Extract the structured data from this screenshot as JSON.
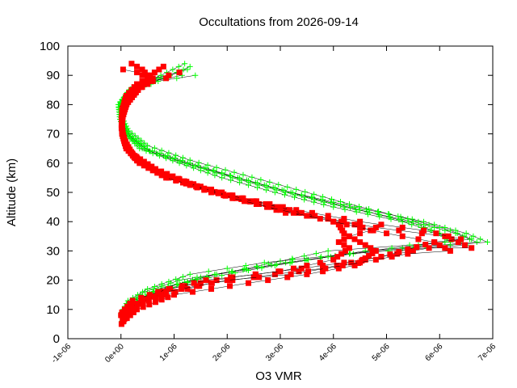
{
  "chart_data": {
    "type": "scatter",
    "title": "Occultations from 2026-09-14",
    "xlabel": "O3 VMR",
    "ylabel": "Altitude (km)",
    "xlim": [
      -1e-06,
      7e-06
    ],
    "ylim": [
      0,
      100
    ],
    "x_ticks": [
      -1e-06,
      0,
      1e-06,
      2e-06,
      3e-06,
      4e-06,
      5e-06,
      6e-06,
      7e-06
    ],
    "x_tick_labels": [
      "-1e-06",
      "0e+00",
      "1e-06",
      "2e-06",
      "3e-06",
      "4e-06",
      "5e-06",
      "6e-06",
      "7e-06"
    ],
    "y_ticks": [
      0,
      10,
      20,
      30,
      40,
      50,
      60,
      70,
      80,
      90,
      100
    ],
    "y_tick_labels": [
      "0",
      "10",
      "20",
      "30",
      "40",
      "50",
      "60",
      "70",
      "80",
      "90",
      "100"
    ],
    "grid": false,
    "legend": "none",
    "colors": {
      "green": "#00ff00",
      "red": "#ff0000",
      "line": "#000000"
    },
    "series": [
      {
        "marker": "plus",
        "color": "#00ff00",
        "profiles": [
          [
            [
              2e-08,
              6
            ],
            [
              1.4e-07,
              10
            ],
            [
              5.5e-07,
              15
            ],
            [
              1.4e-06,
              20
            ],
            [
              2.9e-06,
              25
            ],
            [
              4.6e-06,
              30
            ],
            [
              6.7e-06,
              33
            ],
            [
              6.3e-06,
              36
            ],
            [
              5.5e-06,
              40
            ],
            [
              4.2e-06,
              45
            ],
            [
              3.1e-06,
              50
            ],
            [
              2.1e-06,
              55
            ],
            [
              1.2e-06,
              60
            ],
            [
              4e-07,
              65
            ],
            [
              1e-07,
              70
            ],
            [
              -1e-08,
              75
            ],
            [
              -3e-08,
              80
            ],
            [
              1.8e-07,
              85
            ],
            [
              7e-07,
              89
            ],
            [
              1.25e-06,
              92
            ]
          ],
          [
            [
              4e-08,
              7
            ],
            [
              1.7e-07,
              11
            ],
            [
              6e-07,
              16
            ],
            [
              1.5e-06,
              21
            ],
            [
              3.1e-06,
              26
            ],
            [
              4.8e-06,
              30
            ],
            [
              6.9e-06,
              33
            ],
            [
              6.5e-06,
              36
            ],
            [
              5.7e-06,
              40
            ],
            [
              4.4e-06,
              45
            ],
            [
              3.2e-06,
              50
            ],
            [
              2.2e-06,
              55
            ],
            [
              1.3e-06,
              60
            ],
            [
              4.5e-07,
              65
            ],
            [
              1.2e-07,
              70
            ],
            [
              0,
              75
            ],
            [
              -2e-08,
              80
            ],
            [
              2e-07,
              85
            ],
            [
              8e-07,
              89
            ],
            [
              1.3e-06,
              93
            ]
          ],
          [
            [
              0,
              8
            ],
            [
              1.2e-07,
              12
            ],
            [
              4.5e-07,
              16
            ],
            [
              1.1e-06,
              20
            ],
            [
              2.1e-06,
              23
            ],
            [
              3.9e-06,
              30
            ],
            [
              6.2e-06,
              33
            ],
            [
              6e-06,
              36
            ],
            [
              5.3e-06,
              40
            ],
            [
              4e-06,
              45
            ],
            [
              2.9e-06,
              50
            ],
            [
              1.9e-06,
              55
            ],
            [
              1.1e-06,
              60
            ],
            [
              3.5e-07,
              65
            ],
            [
              8e-08,
              70
            ],
            [
              -2e-08,
              75
            ],
            [
              -5e-08,
              80
            ],
            [
              1.5e-07,
              85
            ],
            [
              6e-07,
              88
            ],
            [
              1.15e-06,
              90
            ]
          ],
          [
            [
              6e-08,
              6
            ],
            [
              2.2e-07,
              12
            ],
            [
              7e-07,
              17
            ],
            [
              1.8e-06,
              22
            ],
            [
              3.5e-06,
              27
            ],
            [
              5.1e-06,
              31
            ],
            [
              6.6e-06,
              34
            ],
            [
              6.2e-06,
              37
            ],
            [
              5.4e-06,
              41
            ],
            [
              4.3e-06,
              46
            ],
            [
              3.3e-06,
              51
            ],
            [
              2.3e-06,
              56
            ],
            [
              1.3e-06,
              61
            ],
            [
              5e-07,
              66
            ],
            [
              1.5e-07,
              71
            ],
            [
              1e-08,
              76
            ],
            [
              -1e-08,
              81
            ],
            [
              2.2e-07,
              86
            ],
            [
              7.5e-07,
              90
            ],
            [
              1.2e-06,
              94
            ]
          ],
          [
            [
              1e-08,
              9
            ],
            [
              1.3e-07,
              13
            ],
            [
              5e-07,
              17
            ],
            [
              1.3e-06,
              22
            ],
            [
              2.7e-06,
              26
            ],
            [
              4.3e-06,
              29
            ],
            [
              6.5e-06,
              32
            ],
            [
              6.1e-06,
              35
            ],
            [
              5.6e-06,
              39
            ],
            [
              4.5e-06,
              44
            ],
            [
              3.4e-06,
              49
            ],
            [
              2.4e-06,
              54
            ],
            [
              1.4e-06,
              59
            ],
            [
              5.5e-07,
              64
            ],
            [
              1.8e-07,
              69
            ],
            [
              2e-08,
              74
            ],
            [
              -4e-08,
              79
            ],
            [
              1.6e-07,
              84
            ],
            [
              7e-07,
              88
            ],
            [
              1.4e-06,
              90
            ]
          ]
        ]
      },
      {
        "marker": "square",
        "color": "#ff0000",
        "profiles": [
          [
            [
              3e-08,
              7
            ],
            [
              2.5e-07,
              11
            ],
            [
              8e-07,
              15
            ],
            [
              1.7e-06,
              19
            ],
            [
              2.9e-06,
              22
            ],
            [
              3.8e-06,
              24
            ],
            [
              4.6e-06,
              27
            ],
            [
              5.8e-06,
              31
            ],
            [
              6.6e-06,
              31
            ],
            [
              6.1e-06,
              35
            ],
            [
              4.8e-06,
              38
            ],
            [
              3.6e-06,
              42
            ],
            [
              2.6e-06,
              46
            ],
            [
              1.6e-06,
              51
            ],
            [
              8e-07,
              56
            ],
            [
              3e-07,
              61
            ],
            [
              9e-08,
              66
            ],
            [
              2e-08,
              71
            ],
            [
              3e-08,
              76
            ],
            [
              1.2e-07,
              81
            ],
            [
              3.5e-07,
              86
            ],
            [
              6e-07,
              89
            ],
            [
              9e-07,
              90
            ],
            [
              1.1e-06,
              91
            ]
          ],
          [
            [
              0,
              8
            ],
            [
              2.8e-07,
              12
            ],
            [
              9e-07,
              17
            ],
            [
              2.1e-06,
              21
            ],
            [
              3.4e-06,
              24
            ],
            [
              4.2e-06,
              26
            ],
            [
              4.9e-06,
              28
            ],
            [
              5.9e-06,
              33
            ],
            [
              6.4e-06,
              34
            ],
            [
              5.7e-06,
              37
            ],
            [
              4.5e-06,
              40
            ],
            [
              3.3e-06,
              44
            ],
            [
              2.3e-06,
              48
            ],
            [
              1.5e-06,
              52
            ],
            [
              7e-07,
              57
            ],
            [
              2.5e-07,
              62
            ],
            [
              7e-08,
              67
            ],
            [
              1e-08,
              72
            ],
            [
              4e-08,
              77
            ],
            [
              1.4e-07,
              82
            ],
            [
              3.8e-07,
              86
            ],
            [
              5.5e-07,
              90
            ],
            [
              8e-07,
              93
            ]
          ],
          [
            [
              5e-08,
              6
            ],
            [
              3e-07,
              10
            ],
            [
              1e-06,
              15
            ],
            [
              2.4e-06,
              19
            ],
            [
              3.5e-06,
              22
            ],
            [
              4.4e-06,
              25
            ],
            [
              4.8e-06,
              30
            ],
            [
              4.5e-06,
              33
            ],
            [
              4.2e-06,
              36
            ],
            [
              4.1e-06,
              39
            ],
            [
              3.9e-06,
              41
            ],
            [
              3.1e-06,
              43
            ],
            [
              2.4e-06,
              47
            ],
            [
              1.7e-06,
              50
            ],
            [
              9e-07,
              55
            ],
            [
              4e-07,
              60
            ],
            [
              1.2e-07,
              65
            ],
            [
              3e-08,
              70
            ],
            [
              2e-08,
              75
            ],
            [
              1e-07,
              80
            ],
            [
              3.2e-07,
              85
            ],
            [
              5e-07,
              88
            ],
            [
              8.5e-07,
              89
            ]
          ],
          [
            [
              2e-08,
              9
            ],
            [
              2.2e-07,
              13
            ],
            [
              7e-07,
              16
            ],
            [
              1.6e-06,
              20
            ],
            [
              3e-06,
              23
            ],
            [
              4e-06,
              27
            ],
            [
              4.3e-06,
              31
            ],
            [
              4.1e-06,
              33
            ],
            [
              4.3e-06,
              35
            ],
            [
              4.7e-06,
              37
            ],
            [
              4.4e-06,
              39
            ],
            [
              3.4e-06,
              43
            ],
            [
              2.5e-06,
              47
            ],
            [
              1.6e-06,
              51
            ],
            [
              8.5e-07,
              55
            ],
            [
              3.5e-07,
              60
            ],
            [
              1e-07,
              65
            ],
            [
              2e-08,
              70
            ],
            [
              1e-08,
              75
            ],
            [
              8e-08,
              80
            ],
            [
              3e-07,
              85
            ],
            [
              6e-07,
              88
            ],
            [
              4e-07,
              92
            ],
            [
              2e-07,
              94
            ]
          ],
          [
            [
              1e-08,
              5
            ],
            [
              2e-07,
              11
            ],
            [
              8.5e-07,
              16
            ],
            [
              2e-06,
              20
            ],
            [
              3.2e-06,
              22
            ],
            [
              4.5e-06,
              26
            ],
            [
              5.4e-06,
              29
            ],
            [
              6.2e-06,
              30
            ],
            [
              5.9e-06,
              33
            ],
            [
              5e-06,
              36
            ],
            [
              4e-06,
              40
            ],
            [
              3e-06,
              44
            ],
            [
              2.1e-06,
              48
            ],
            [
              1.3e-06,
              53
            ],
            [
              6.5e-07,
              58
            ],
            [
              2.2e-07,
              63
            ],
            [
              6e-08,
              68
            ],
            [
              1e-08,
              73
            ],
            [
              2e-08,
              78
            ],
            [
              1e-07,
              83
            ],
            [
              3e-07,
              87
            ],
            [
              5e-07,
              89
            ],
            [
              3e-07,
              91
            ],
            [
              4e-08,
              92
            ]
          ]
        ]
      }
    ]
  }
}
